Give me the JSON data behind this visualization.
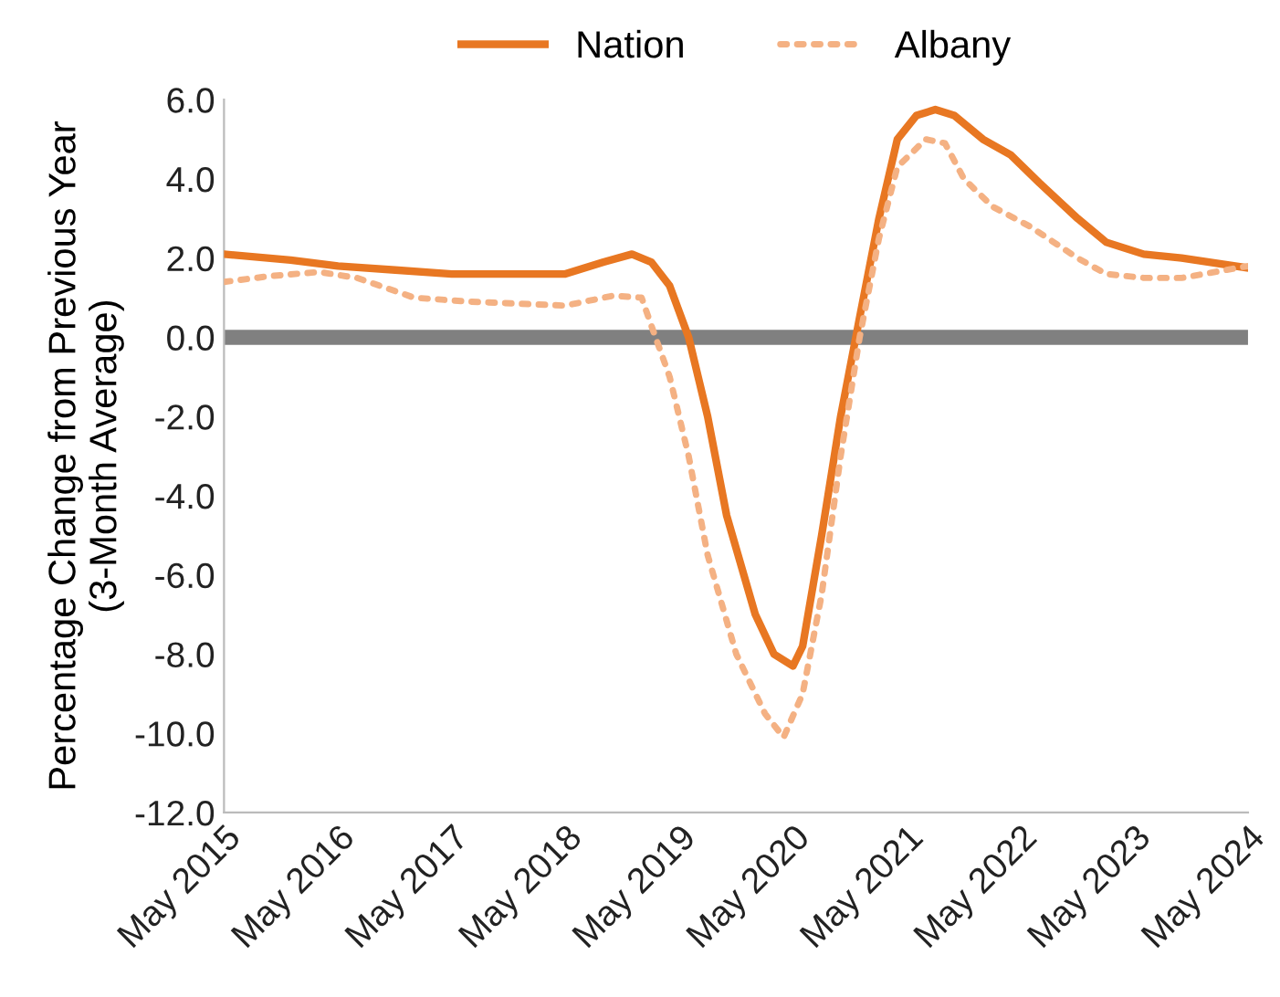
{
  "chart_data": {
    "type": "line",
    "ylabel": "Percentage Change from Previous Year\n(3-Month Average)",
    "legend": "top",
    "grid": false,
    "marker": "none",
    "xlim": [
      "2015-05",
      "2024-05"
    ],
    "xticks": [
      {
        "value": "2015-05",
        "label": "May 2015"
      },
      {
        "value": "2016-05",
        "label": "May 2016"
      },
      {
        "value": "2017-05",
        "label": "May 2017"
      },
      {
        "value": "2018-05",
        "label": "May 2018"
      },
      {
        "value": "2019-05",
        "label": "May 2019"
      },
      {
        "value": "2020-05",
        "label": "May 2020"
      },
      {
        "value": "2021-05",
        "label": "May 2021"
      },
      {
        "value": "2022-05",
        "label": "May 2022"
      },
      {
        "value": "2023-05",
        "label": "May 2023"
      },
      {
        "value": "2024-05",
        "label": "May 2024"
      }
    ],
    "ylim": [
      -12,
      6
    ],
    "yticks": [
      {
        "value": 6,
        "label": "6.0"
      },
      {
        "value": 4,
        "label": "4.0"
      },
      {
        "value": 2,
        "label": "2.0"
      },
      {
        "value": 0,
        "label": "0.0"
      },
      {
        "value": -2,
        "label": "-2.0"
      },
      {
        "value": -4,
        "label": "-4.0"
      },
      {
        "value": -6,
        "label": "-6.0"
      },
      {
        "value": -8,
        "label": "-8.0"
      },
      {
        "value": -10,
        "label": "-10.0"
      },
      {
        "value": -12,
        "label": "-12.0"
      }
    ],
    "ref_lines": [
      {
        "axis": "y",
        "value": 0,
        "color": "#808080"
      }
    ],
    "series": [
      {
        "name": "Nation",
        "color": "#e87722",
        "line_style": "solid",
        "x": [
          "2015-05",
          "2015-12",
          "2016-05",
          "2016-11",
          "2017-05",
          "2017-12",
          "2018-05",
          "2018-09",
          "2018-12",
          "2019-02",
          "2019-04",
          "2019-06",
          "2019-08",
          "2019-10",
          "2020-01",
          "2020-03",
          "2020-05",
          "2020-06",
          "2020-08",
          "2020-10",
          "2020-12",
          "2021-02",
          "2021-04",
          "2021-06",
          "2021-08",
          "2021-10",
          "2022-01",
          "2022-04",
          "2022-07",
          "2022-11",
          "2023-02",
          "2023-06",
          "2023-10",
          "2024-05"
        ],
        "values": [
          2.1,
          1.95,
          1.8,
          1.7,
          1.6,
          1.6,
          1.6,
          1.9,
          2.1,
          1.9,
          1.3,
          0,
          -2,
          -4.5,
          -7,
          -8,
          -8.3,
          -7.8,
          -5,
          -2,
          0.5,
          3,
          5,
          5.6,
          5.75,
          5.6,
          5.0,
          4.6,
          3.9,
          3.0,
          2.4,
          2.1,
          2.0,
          1.75
        ]
      },
      {
        "name": "Albany",
        "color": "#f4b183",
        "line_style": "dotted",
        "x": [
          "2015-05",
          "2015-10",
          "2016-03",
          "2016-07",
          "2017-01",
          "2017-07",
          "2017-12",
          "2018-05",
          "2018-10",
          "2019-01",
          "2019-02",
          "2019-04",
          "2019-06",
          "2019-08",
          "2019-11",
          "2020-02",
          "2020-04",
          "2020-06",
          "2020-08",
          "2020-10",
          "2020-12",
          "2021-02",
          "2021-04",
          "2021-07",
          "2021-09",
          "2021-11",
          "2022-02",
          "2022-06",
          "2022-11",
          "2023-02",
          "2023-06",
          "2023-10",
          "2024-05"
        ],
        "values": [
          1.4,
          1.55,
          1.65,
          1.5,
          1.0,
          0.9,
          0.85,
          0.8,
          1.05,
          1.0,
          0.3,
          -1,
          -3,
          -5.5,
          -8,
          -9.5,
          -10.1,
          -9,
          -6.5,
          -3,
          0,
          2.5,
          4.3,
          5.0,
          4.9,
          4.0,
          3.3,
          2.8,
          2.0,
          1.6,
          1.5,
          1.5,
          1.8
        ]
      }
    ]
  }
}
